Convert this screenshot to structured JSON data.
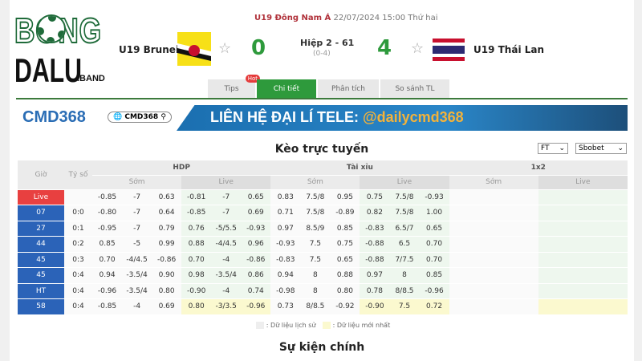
{
  "logo": {
    "line1": "BONG",
    "line2": "DALU",
    "suffix": ".BAND"
  },
  "match": {
    "league": "U19 Đông Nam Á",
    "datetime": "22/07/2024 15:00 Thứ hai",
    "home": "U19 Brunei",
    "away": "U19 Thái Lan",
    "home_score": "0",
    "away_score": "4",
    "status": "Hiệp 2 - 61",
    "ht_score": "(0-4)"
  },
  "tabs": [
    {
      "label": "Tips",
      "badge": "Hot"
    },
    {
      "label": "Chi tiết",
      "active": true
    },
    {
      "label": "Phân tích"
    },
    {
      "label": "So sánh TL"
    }
  ],
  "banner": {
    "brand": "CMD368",
    "search": "CMD368",
    "text": "LIÊN HỆ ĐẠI LÍ TELE: ",
    "handle": "@dailycmd368"
  },
  "odds": {
    "title": "Kèo trực tuyến",
    "period": "FT",
    "bookmaker": "Sbobet",
    "headers": {
      "time": "Giờ",
      "score": "Tỷ số",
      "hdp": "HDP",
      "ou": "Tài xỉu",
      "x12": "1x2",
      "early": "Sớm",
      "live": "Live"
    },
    "rows": [
      {
        "time": "Live",
        "score": "",
        "hdp_e": [
          "-0.85",
          "-7",
          "0.63"
        ],
        "hdp_l": [
          "-0.81",
          "-7",
          "0.65"
        ],
        "ou_e": [
          "0.83",
          "7.5/8",
          "0.95"
        ],
        "ou_l": [
          "0.75",
          "7.5/8",
          "-0.93"
        ]
      },
      {
        "time": "07",
        "score": "0:0",
        "hdp_e": [
          "-0.80",
          "-7",
          "0.64"
        ],
        "hdp_l": [
          "-0.85",
          "-7",
          "0.69"
        ],
        "ou_e": [
          "0.71",
          "7.5/8",
          "-0.89"
        ],
        "ou_l": [
          "0.82",
          "7.5/8",
          "1.00"
        ]
      },
      {
        "time": "27",
        "score": "0:1",
        "hdp_e": [
          "-0.95",
          "-7",
          "0.79"
        ],
        "hdp_l": [
          "0.76",
          "-5/5.5",
          "-0.93"
        ],
        "ou_e": [
          "0.97",
          "8.5/9",
          "0.85"
        ],
        "ou_l": [
          "-0.83",
          "6.5/7",
          "0.65"
        ]
      },
      {
        "time": "44",
        "score": "0:2",
        "hdp_e": [
          "0.85",
          "-5",
          "0.99"
        ],
        "hdp_l": [
          "0.88",
          "-4/4.5",
          "0.96"
        ],
        "ou_e": [
          "-0.93",
          "7.5",
          "0.75"
        ],
        "ou_l": [
          "-0.88",
          "6.5",
          "0.70"
        ]
      },
      {
        "time": "45",
        "score": "0:3",
        "hdp_e": [
          "0.70",
          "-4/4.5",
          "-0.86"
        ],
        "hdp_l": [
          "0.70",
          "-4",
          "-0.86"
        ],
        "ou_e": [
          "-0.83",
          "7.5",
          "0.65"
        ],
        "ou_l": [
          "-0.88",
          "7/7.5",
          "0.70"
        ]
      },
      {
        "time": "45",
        "score": "0:4",
        "hdp_e": [
          "0.94",
          "-3.5/4",
          "0.90"
        ],
        "hdp_l": [
          "0.98",
          "-3.5/4",
          "0.86"
        ],
        "ou_e": [
          "0.94",
          "8",
          "0.88"
        ],
        "ou_l": [
          "0.97",
          "8",
          "0.85"
        ]
      },
      {
        "time": "HT",
        "score": "0:4",
        "hdp_e": [
          "-0.96",
          "-3.5/4",
          "0.80"
        ],
        "hdp_l": [
          "-0.90",
          "-4",
          "0.74"
        ],
        "ou_e": [
          "-0.98",
          "8",
          "0.80"
        ],
        "ou_l": [
          "0.78",
          "8/8.5",
          "-0.96"
        ]
      },
      {
        "time": "58",
        "score": "0:4",
        "hdp_e": [
          "-0.85",
          "-4",
          "0.69"
        ],
        "hdp_l": [
          "0.80",
          "-3/3.5",
          "-0.96"
        ],
        "ou_e": [
          "0.73",
          "8/8.5",
          "-0.92"
        ],
        "ou_l": [
          "-0.90",
          "7.5",
          "0.72"
        ],
        "latest": true
      }
    ]
  },
  "legend": {
    "history": ": Dữ liệu lịch sử",
    "latest": ": Dữ liệu mới nhất"
  },
  "events_title": "Sự kiện chính",
  "colors": {
    "accent": "#2e9a3c",
    "live": "#e84040",
    "time": "#2b63b8"
  }
}
